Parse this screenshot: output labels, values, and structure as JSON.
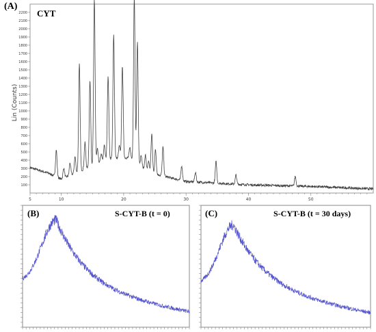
{
  "panels": {
    "a_label": "(A)",
    "a_title": "CYT",
    "a_ylabel": "Lin (Counts)",
    "b_label": "(B)",
    "b_title": "S-CYT-B (t = 0)",
    "c_label": "(C)",
    "c_title": "S-CYT-B (t = 30 days)"
  },
  "chart_data": [
    {
      "type": "line",
      "title": "CYT",
      "ylabel": "Lin (Counts)",
      "xlim": [
        5,
        60
      ],
      "ylim": [
        0,
        2300
      ],
      "x_ticks": [
        "5",
        "10",
        "20",
        "30",
        "40",
        "50"
      ],
      "y_ticks": [
        "100",
        "200",
        "300",
        "400",
        "500",
        "600",
        "700",
        "800",
        "900",
        "1000",
        "1100",
        "1200",
        "1300",
        "1400",
        "1500",
        "1600",
        "1700",
        "1800",
        "1900",
        "2000",
        "2100",
        "2200"
      ],
      "color": "#404040",
      "baseline": [
        [
          5,
          310
        ],
        [
          8,
          240
        ],
        [
          10,
          170
        ],
        [
          14,
          300
        ],
        [
          18,
          420
        ],
        [
          21,
          430
        ],
        [
          24,
          250
        ],
        [
          30,
          140
        ],
        [
          40,
          100
        ],
        [
          50,
          80
        ],
        [
          60,
          50
        ]
      ],
      "peaks": [
        [
          9.2,
          330
        ],
        [
          10.4,
          120
        ],
        [
          11.4,
          150
        ],
        [
          12.2,
          200
        ],
        [
          12.9,
          1300
        ],
        [
          13.8,
          320
        ],
        [
          14.6,
          1050
        ],
        [
          15.3,
          2020
        ],
        [
          15.8,
          180
        ],
        [
          16.4,
          100
        ],
        [
          16.9,
          200
        ],
        [
          17.5,
          1020
        ],
        [
          18.4,
          1500
        ],
        [
          19.3,
          150
        ],
        [
          19.8,
          1120
        ],
        [
          21.0,
          120
        ],
        [
          21.7,
          2000
        ],
        [
          22.2,
          1480
        ],
        [
          22.8,
          130
        ],
        [
          23.5,
          180
        ],
        [
          24.0,
          140
        ],
        [
          24.5,
          480
        ],
        [
          25.1,
          300
        ],
        [
          26.3,
          350
        ],
        [
          29.3,
          180
        ],
        [
          31.5,
          120
        ],
        [
          34.8,
          260
        ],
        [
          38.0,
          110
        ],
        [
          47.5,
          120
        ]
      ],
      "pw": 0.12
    },
    {
      "type": "line",
      "title": "S-CYT-B (t = 0)",
      "xlim": [
        3,
        50
      ],
      "ylim": [
        0,
        100
      ],
      "color": "#5555cc",
      "hump": {
        "center": 12.5,
        "peak": 88,
        "base_start": 36,
        "base_end": 12,
        "left_width": 4.2,
        "decay": 8
      }
    },
    {
      "type": "line",
      "title": "S-CYT-B (t = 30 days)",
      "xlim": [
        3,
        50
      ],
      "ylim": [
        0,
        100
      ],
      "color": "#5555cc",
      "hump": {
        "center": 12.0,
        "peak": 84,
        "base_start": 34,
        "base_end": 11,
        "left_width": 4.0,
        "decay": 8.5
      }
    }
  ]
}
